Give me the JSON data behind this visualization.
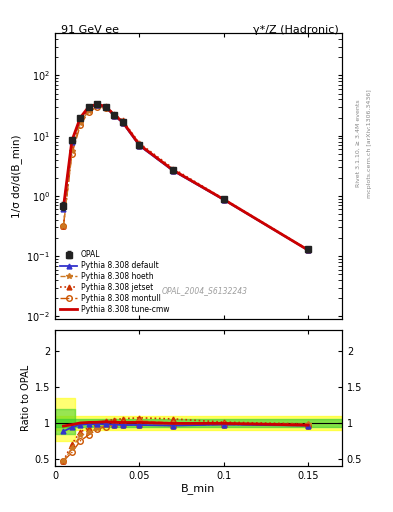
{
  "title_left": "91 GeV ee",
  "title_right": "γ*/Z (Hadronic)",
  "ylabel_main": "1/σ dσ/d(B_min)",
  "ylabel_ratio": "Ratio to OPAL",
  "xlabel": "B_min",
  "watermark": "OPAL_2004_S6132243",
  "right_label": "Rivet 3.1.10, ≥ 3.4M events",
  "right_label2": "mcplots.cern.ch [arXiv:1306.3436]",
  "opal_x": [
    0.005,
    0.01,
    0.015,
    0.02,
    0.025,
    0.03,
    0.035,
    0.04,
    0.05,
    0.07,
    0.1,
    0.15
  ],
  "opal_y": [
    0.68,
    8.5,
    20.0,
    30.0,
    33.0,
    30.0,
    22.0,
    17.0,
    7.0,
    2.7,
    0.88,
    0.13
  ],
  "opal_yerr": [
    0.1,
    0.6,
    1.2,
    1.8,
    1.8,
    1.8,
    1.2,
    1.0,
    0.4,
    0.18,
    0.06,
    0.012
  ],
  "default_x": [
    0.005,
    0.01,
    0.015,
    0.02,
    0.025,
    0.03,
    0.035,
    0.04,
    0.05,
    0.07,
    0.1,
    0.15
  ],
  "default_y": [
    0.6,
    8.0,
    19.5,
    29.5,
    32.5,
    29.5,
    21.5,
    16.5,
    6.8,
    2.6,
    0.86,
    0.125
  ],
  "hoeth_x": [
    0.005,
    0.01,
    0.015,
    0.02,
    0.025,
    0.03,
    0.035,
    0.04,
    0.05,
    0.07,
    0.1,
    0.15
  ],
  "hoeth_y": [
    0.32,
    5.5,
    16.5,
    26.0,
    30.5,
    29.0,
    21.5,
    17.0,
    7.2,
    2.7,
    0.87,
    0.128
  ],
  "jetset_x": [
    0.005,
    0.01,
    0.015,
    0.02,
    0.025,
    0.03,
    0.035,
    0.04,
    0.05,
    0.07,
    0.1,
    0.15
  ],
  "jetset_y": [
    0.32,
    6.0,
    17.5,
    28.0,
    32.5,
    31.0,
    23.0,
    18.0,
    7.5,
    2.85,
    0.89,
    0.128
  ],
  "montull_x": [
    0.005,
    0.01,
    0.015,
    0.02,
    0.025,
    0.03,
    0.035,
    0.04,
    0.05,
    0.07,
    0.1,
    0.15
  ],
  "montull_y": [
    0.32,
    5.0,
    15.0,
    25.0,
    30.0,
    28.5,
    21.5,
    16.5,
    6.8,
    2.6,
    0.86,
    0.125
  ],
  "tunecmw_x": [
    0.005,
    0.01,
    0.015,
    0.02,
    0.025,
    0.03,
    0.035,
    0.04,
    0.05,
    0.07,
    0.1,
    0.15
  ],
  "tunecmw_y": [
    0.65,
    8.3,
    20.0,
    30.2,
    33.3,
    30.5,
    22.2,
    17.1,
    7.05,
    2.68,
    0.875,
    0.126
  ],
  "ratio_default": [
    0.882,
    0.941,
    0.975,
    0.983,
    0.985,
    0.983,
    0.977,
    0.971,
    0.971,
    0.963,
    0.977,
    0.962
  ],
  "ratio_hoeth": [
    0.47,
    0.647,
    0.825,
    0.867,
    0.924,
    0.967,
    0.977,
    1.0,
    1.029,
    1.0,
    0.989,
    0.985
  ],
  "ratio_jetset": [
    0.47,
    0.706,
    0.875,
    0.933,
    0.985,
    1.033,
    1.045,
    1.059,
    1.071,
    1.056,
    1.011,
    0.985
  ],
  "ratio_montull": [
    0.47,
    0.588,
    0.75,
    0.833,
    0.909,
    0.95,
    0.977,
    0.971,
    0.971,
    0.963,
    0.977,
    0.962
  ],
  "ratio_tunecmw": [
    0.956,
    0.976,
    1.0,
    1.007,
    1.009,
    1.017,
    1.009,
    1.006,
    1.007,
    0.993,
    0.994,
    0.969
  ],
  "opal_color": "#222222",
  "default_color": "#3333cc",
  "hoeth_color": "#cc7722",
  "jetset_color": "#cc3300",
  "montull_color": "#cc5500",
  "tunecmw_color": "#cc0000",
  "xlim": [
    0.0,
    0.17
  ],
  "ylim_main": [
    0.009,
    500
  ],
  "ylim_ratio": [
    0.4,
    2.3
  ]
}
